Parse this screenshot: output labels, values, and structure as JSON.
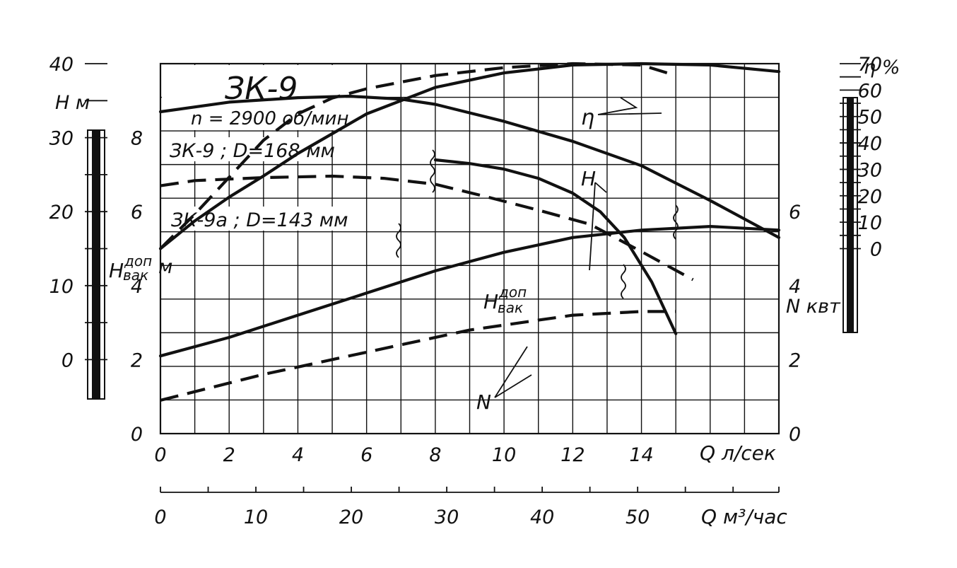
{
  "chart_data": {
    "type": "line",
    "title": "ЗК-9",
    "subtitle": "n = 2900 об/мин",
    "x_axis": {
      "label": "Q л/сек",
      "ticks": [
        "0",
        "2",
        "4",
        "6",
        "8",
        "10",
        "12",
        "14"
      ],
      "range": [
        0,
        18
      ]
    },
    "x2_axis": {
      "label": "Q м³/час",
      "ticks": [
        "0",
        "10",
        "20",
        "30",
        "40",
        "50"
      ],
      "range": [
        0,
        64.8
      ]
    },
    "y_axes": {
      "head": {
        "label": "Н м",
        "ticks": [
          "0",
          "10",
          "20",
          "30",
          "40"
        ],
        "range": [
          -10,
          40
        ]
      },
      "vacuum": {
        "label_main": "Н",
        "label_sup": "доп",
        "label_sub": "вак",
        "label_unit": "м",
        "ticks": [
          "0",
          "2",
          "4",
          "6",
          "8"
        ],
        "range": [
          0,
          10
        ]
      },
      "power": {
        "label": "N квт",
        "ticks": [
          "0",
          "2",
          "4",
          "6"
        ],
        "range": [
          0,
          10
        ]
      },
      "efficiency": {
        "label": "η %",
        "ticks": [
          "0",
          "10",
          "20",
          "30",
          "40",
          "50",
          "60",
          "70"
        ],
        "range": [
          -70,
          70
        ]
      }
    },
    "annotations": {
      "curve_168": "ЗК-9 ; D=168 мм",
      "curve_143": "ЗК-9а ; D=143 мм",
      "eta": "η",
      "head": "Н",
      "npsh_main": "Н",
      "npsh_sup": "доп",
      "npsh_sub": "вак",
      "power": "N"
    },
    "series": [
      {
        "name": "Н (D=168 мм)",
        "axis": "head",
        "style": "solid",
        "x": [
          0,
          2,
          4,
          5.5,
          7,
          8,
          10,
          12,
          14,
          16,
          18
        ],
        "y": [
          33.5,
          34.8,
          35.4,
          35.6,
          35.2,
          34.5,
          32.2,
          29.5,
          26.2,
          21.5,
          16.5
        ]
      },
      {
        "name": "Н (D=143 мм)",
        "axis": "head",
        "style": "dashed",
        "x": [
          0,
          1,
          3,
          5,
          6.5,
          8,
          9.5,
          11,
          12.5,
          14,
          15.5
        ],
        "y": [
          23.5,
          24.2,
          24.6,
          24.8,
          24.5,
          23.7,
          22,
          20.2,
          18.3,
          14.6,
          10.8
        ]
      },
      {
        "name": "η (D=168 мм)",
        "axis": "efficiency",
        "style": "solid",
        "x": [
          0,
          1,
          2,
          3,
          4,
          5,
          6,
          8,
          10,
          12,
          14,
          16,
          18
        ],
        "y": [
          0,
          10.5,
          19.5,
          27.5,
          36,
          43.5,
          51,
          61,
          66.5,
          69.5,
          70,
          69.5,
          67
        ]
      },
      {
        "name": "η (D=143 мм)",
        "axis": "efficiency",
        "style": "dashed",
        "x": [
          0,
          1,
          2,
          3,
          4,
          5,
          6,
          8,
          10,
          12,
          14,
          15
        ],
        "y": [
          0,
          13,
          27,
          41,
          51,
          57,
          60.5,
          65.5,
          68.5,
          70,
          69.5,
          65.5
        ]
      },
      {
        "name": "Ндоп вак (D=168 мм)",
        "axis": "vacuum",
        "style": "solid",
        "x": [
          8,
          9,
          10,
          11,
          12,
          12.8,
          13.5,
          14.3,
          15
        ],
        "y": [
          7.4,
          7.3,
          7.15,
          6.9,
          6.5,
          6,
          5.3,
          4.1,
          2.7
        ]
      },
      {
        "name": "N (D=168 мм)",
        "axis": "power",
        "style": "solid",
        "x": [
          0,
          2,
          4,
          6,
          8,
          10,
          12,
          14,
          16,
          18
        ],
        "y": [
          2.1,
          2.6,
          3.2,
          3.8,
          4.4,
          4.9,
          5.3,
          5.5,
          5.6,
          5.5
        ]
      },
      {
        "name": "N (D=143 мм)",
        "axis": "power",
        "style": "dashed",
        "x": [
          0,
          3,
          6,
          9,
          12,
          14,
          15
        ],
        "y": [
          0.9,
          1.6,
          2.2,
          2.8,
          3.2,
          3.3,
          3.3
        ]
      }
    ],
    "grid": true
  }
}
